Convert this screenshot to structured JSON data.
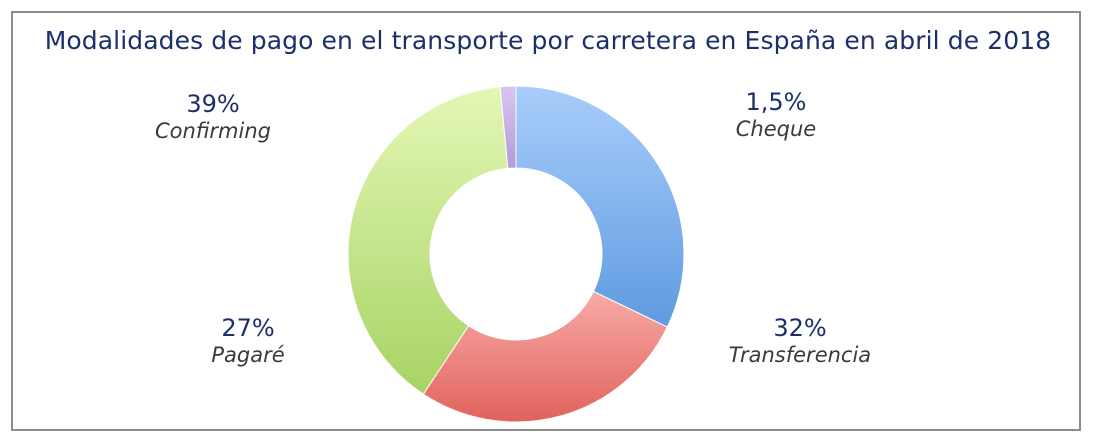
{
  "title": "Modalidades de pago en el transporte por carretera en España en abril de 2018",
  "chart_data": {
    "type": "pie",
    "donut": true,
    "title": "Modalidades de pago en el transporte por carretera en España en abril de 2018",
    "slices": [
      {
        "label": "Transferencia",
        "value": 32,
        "value_label": "32%",
        "color_top": "#a9cdfb",
        "color_bottom": "#5e9be0"
      },
      {
        "label": "Pagaré",
        "value": 27,
        "value_label": "27%",
        "color_top": "#f7aba7",
        "color_bottom": "#e1625c"
      },
      {
        "label": "Confirming",
        "value": 39,
        "value_label": "39%",
        "color_top": "#e4f7b6",
        "color_bottom": "#a7d364"
      },
      {
        "label": "Cheque",
        "value": 1.5,
        "value_label": "1,5%",
        "color_top": "#d8c6ef",
        "color_bottom": "#b49ad8"
      }
    ],
    "legend": "none"
  }
}
